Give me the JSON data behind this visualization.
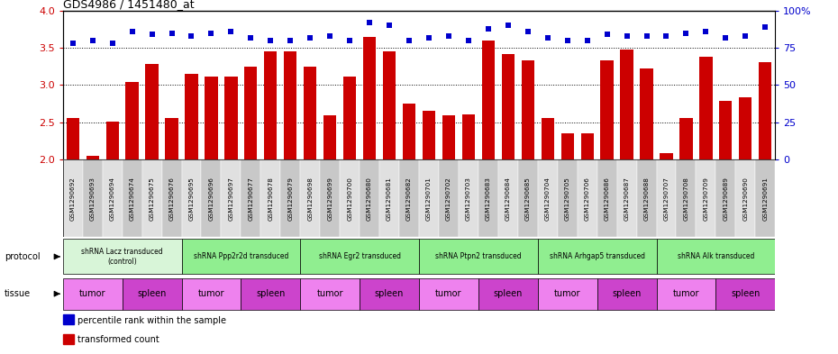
{
  "title": "GDS4986 / 1451480_at",
  "samples": [
    "GSM1290692",
    "GSM1290693",
    "GSM1290694",
    "GSM1290674",
    "GSM1290675",
    "GSM1290676",
    "GSM1290695",
    "GSM1290696",
    "GSM1290697",
    "GSM1290677",
    "GSM1290678",
    "GSM1290679",
    "GSM1290698",
    "GSM1290699",
    "GSM1290700",
    "GSM1290680",
    "GSM1290681",
    "GSM1290682",
    "GSM1290701",
    "GSM1290702",
    "GSM1290703",
    "GSM1290683",
    "GSM1290684",
    "GSM1290685",
    "GSM1290704",
    "GSM1290705",
    "GSM1290706",
    "GSM1290686",
    "GSM1290687",
    "GSM1290688",
    "GSM1290707",
    "GSM1290708",
    "GSM1290709",
    "GSM1290689",
    "GSM1290690",
    "GSM1290691"
  ],
  "bar_values": [
    2.55,
    2.05,
    2.51,
    3.04,
    3.28,
    2.55,
    3.15,
    3.11,
    3.11,
    3.25,
    3.45,
    3.45,
    3.25,
    2.59,
    3.11,
    3.65,
    3.45,
    2.75,
    2.65,
    2.59,
    2.61,
    3.6,
    3.42,
    3.33,
    2.55,
    2.35,
    2.35,
    3.33,
    3.48,
    3.22,
    2.08,
    2.56,
    3.38,
    2.78,
    2.83,
    3.31
  ],
  "dot_values": [
    78,
    80,
    78,
    86,
    84,
    85,
    83,
    85,
    86,
    82,
    80,
    80,
    82,
    83,
    80,
    92,
    90,
    80,
    82,
    83,
    80,
    88,
    90,
    86,
    82,
    80,
    80,
    84,
    83,
    83,
    83,
    85,
    86,
    82,
    83,
    89
  ],
  "protocols": [
    {
      "label": "shRNA Lacz transduced\n(control)",
      "start": 0,
      "end": 6,
      "color": "#d8f5d8"
    },
    {
      "label": "shRNA Ppp2r2d transduced",
      "start": 6,
      "end": 12,
      "color": "#90ee90"
    },
    {
      "label": "shRNA Egr2 transduced",
      "start": 12,
      "end": 18,
      "color": "#90ee90"
    },
    {
      "label": "shRNA Ptpn2 transduced",
      "start": 18,
      "end": 24,
      "color": "#90ee90"
    },
    {
      "label": "shRNA Arhgap5 transduced",
      "start": 24,
      "end": 30,
      "color": "#90ee90"
    },
    {
      "label": "shRNA Alk transduced",
      "start": 30,
      "end": 36,
      "color": "#90ee90"
    }
  ],
  "tissues": [
    {
      "label": "tumor",
      "start": 0,
      "end": 3,
      "color": "#ee82ee"
    },
    {
      "label": "spleen",
      "start": 3,
      "end": 6,
      "color": "#cc44cc"
    },
    {
      "label": "tumor",
      "start": 6,
      "end": 9,
      "color": "#ee82ee"
    },
    {
      "label": "spleen",
      "start": 9,
      "end": 12,
      "color": "#cc44cc"
    },
    {
      "label": "tumor",
      "start": 12,
      "end": 15,
      "color": "#ee82ee"
    },
    {
      "label": "spleen",
      "start": 15,
      "end": 18,
      "color": "#cc44cc"
    },
    {
      "label": "tumor",
      "start": 18,
      "end": 21,
      "color": "#ee82ee"
    },
    {
      "label": "spleen",
      "start": 21,
      "end": 24,
      "color": "#cc44cc"
    },
    {
      "label": "tumor",
      "start": 24,
      "end": 27,
      "color": "#ee82ee"
    },
    {
      "label": "spleen",
      "start": 27,
      "end": 30,
      "color": "#cc44cc"
    },
    {
      "label": "tumor",
      "start": 30,
      "end": 33,
      "color": "#ee82ee"
    },
    {
      "label": "spleen",
      "start": 33,
      "end": 36,
      "color": "#cc44cc"
    }
  ],
  "bar_color": "#cc0000",
  "dot_color": "#0000cc",
  "ylim_left": [
    2.0,
    4.0
  ],
  "yticks_left": [
    2.0,
    2.5,
    3.0,
    3.5,
    4.0
  ],
  "yticks_right": [
    0,
    25,
    50,
    75,
    100
  ],
  "grid_values": [
    2.5,
    3.0,
    3.5
  ],
  "legend_items": [
    {
      "label": "transformed count",
      "color": "#cc0000"
    },
    {
      "label": "percentile rank within the sample",
      "color": "#0000cc"
    }
  ],
  "protocol_label": "protocol",
  "tissue_label": "tissue"
}
